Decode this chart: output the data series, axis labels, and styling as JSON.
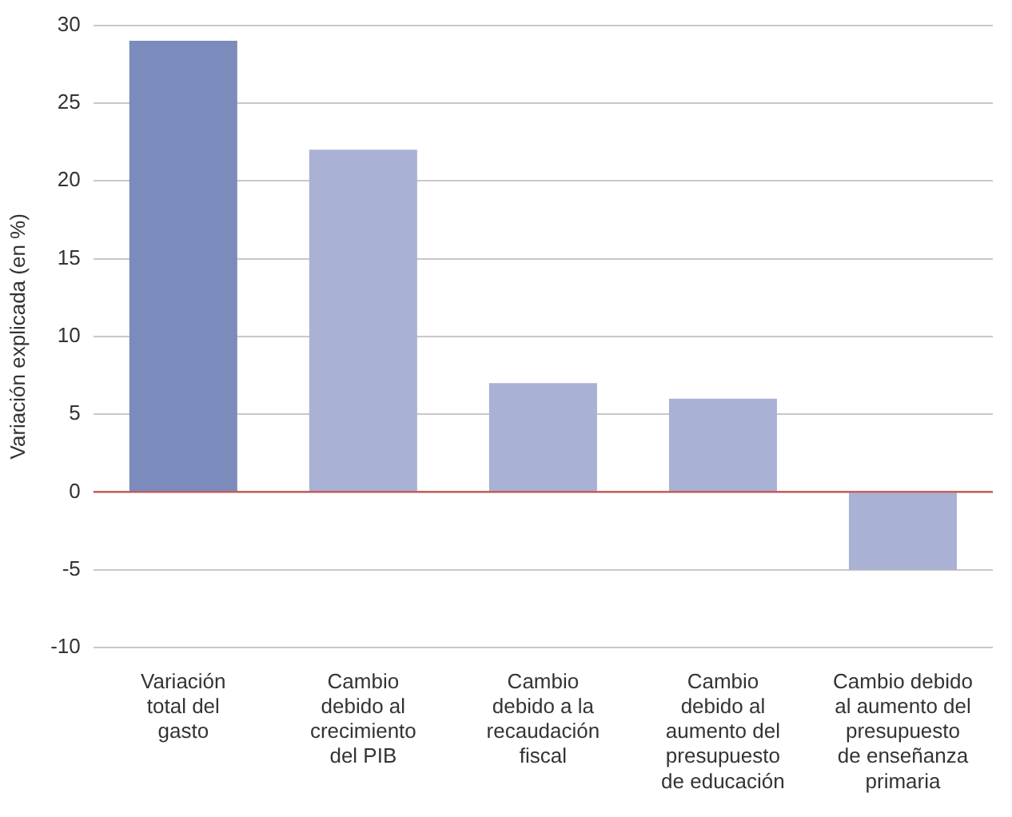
{
  "chart_data": {
    "type": "bar",
    "ylabel": "Variación explicada (en %)",
    "categories": [
      "Variación\ntotal del\ngasto",
      "Cambio\ndebido al\ncrecimiento\ndel PIB",
      "Cambio\ndebido a la\nrecaudación\nfiscal",
      "Cambio\ndebido al\naumento del\npresupuesto\nde educación",
      "Cambio debido\nal aumento del\npresupuesto\nde enseñanza\nprimaria"
    ],
    "values": [
      29,
      22,
      7,
      6,
      -5
    ],
    "colors": [
      "#7b8bbb",
      "#a9b1d4",
      "#a9b1d4",
      "#a9b1d4",
      "#a9b1d4"
    ],
    "ylim": [
      -10,
      30
    ],
    "yticks": [
      -10,
      -5,
      0,
      5,
      10,
      15,
      20,
      25,
      30
    ],
    "grid": "y",
    "ref_lines": [
      {
        "axis": "y",
        "value": 0,
        "color": "#c0504d"
      }
    ]
  }
}
